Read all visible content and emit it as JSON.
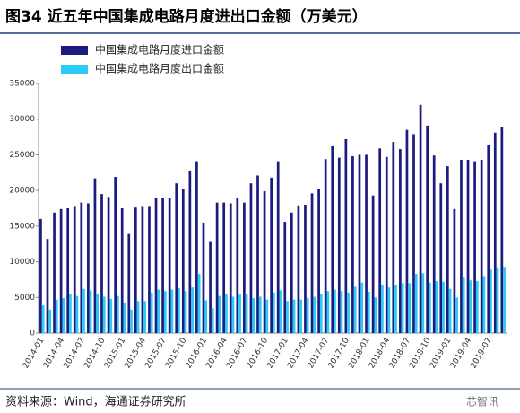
{
  "chart_data": {
    "type": "bar",
    "title": "图34 近五年中国集成电路月度进出口金额（万美元）",
    "source": "资料来源：Wind，海通证券研究所",
    "watermark": "芯智讯",
    "categories": [
      "2014-01",
      null,
      null,
      "2014-04",
      null,
      null,
      "2014-07",
      null,
      null,
      "2014-10",
      null,
      null,
      "2015-01",
      null,
      null,
      "2015-04",
      null,
      null,
      "2015-07",
      null,
      null,
      "2015-10",
      null,
      null,
      "2016-01",
      null,
      null,
      "2016-04",
      null,
      null,
      "2016-07",
      null,
      null,
      "2016-10",
      null,
      null,
      "2017-01",
      null,
      null,
      "2017-04",
      null,
      null,
      "2017-07",
      null,
      null,
      "2017-10",
      null,
      null,
      "2018-01",
      null,
      null,
      "2018-04",
      null,
      null,
      "2018-07",
      null,
      null,
      "2018-10",
      null,
      null,
      "2019-01",
      null,
      null,
      "2019-04",
      null,
      null,
      "2019-07",
      null,
      null
    ],
    "series": [
      {
        "name": "中国集成电路月度进口金额",
        "color": "#1c1c80",
        "values": [
          16000,
          13200,
          16900,
          17400,
          17500,
          17700,
          18300,
          18200,
          21700,
          19500,
          19100,
          21900,
          17500,
          13900,
          17600,
          17700,
          17700,
          18900,
          18900,
          19000,
          21000,
          20200,
          22800,
          24100,
          15500,
          12900,
          18300,
          18300,
          18200,
          18900,
          18300,
          21000,
          22100,
          19900,
          21800,
          24100,
          15600,
          16900,
          17900,
          18000,
          19600,
          20200,
          24400,
          26200,
          24600,
          27200,
          24800,
          25000,
          25000,
          19300,
          25900,
          24700,
          26800,
          25800,
          28500,
          27900,
          32000,
          29100,
          24900,
          21000,
          23400,
          17400,
          24300,
          24300,
          24100,
          24300,
          26400,
          28100,
          28900
        ]
      },
      {
        "name": "中国集成电路月度出口金额",
        "color": "#2ccbf5",
        "values": [
          3900,
          3300,
          4700,
          4900,
          5500,
          5200,
          6200,
          6000,
          5500,
          5100,
          4800,
          5200,
          4300,
          3300,
          4500,
          4500,
          5700,
          6100,
          5900,
          6100,
          6300,
          5900,
          6400,
          8300,
          4600,
          3500,
          5200,
          5500,
          5100,
          5400,
          5500,
          4900,
          5100,
          4700,
          5700,
          6000,
          4500,
          4700,
          4700,
          4900,
          5100,
          5500,
          5900,
          6100,
          5900,
          5700,
          6500,
          7100,
          5800,
          5000,
          6800,
          6400,
          6800,
          7000,
          7000,
          8300,
          8400,
          7100,
          7300,
          7200,
          6200,
          5000,
          7800,
          7400,
          7300,
          8000,
          8900,
          9200,
          9300
        ]
      }
    ],
    "ylim": [
      0,
      35000
    ],
    "yticks": [
      0,
      5000,
      10000,
      15000,
      20000,
      25000,
      30000,
      35000
    ],
    "grid": false
  }
}
